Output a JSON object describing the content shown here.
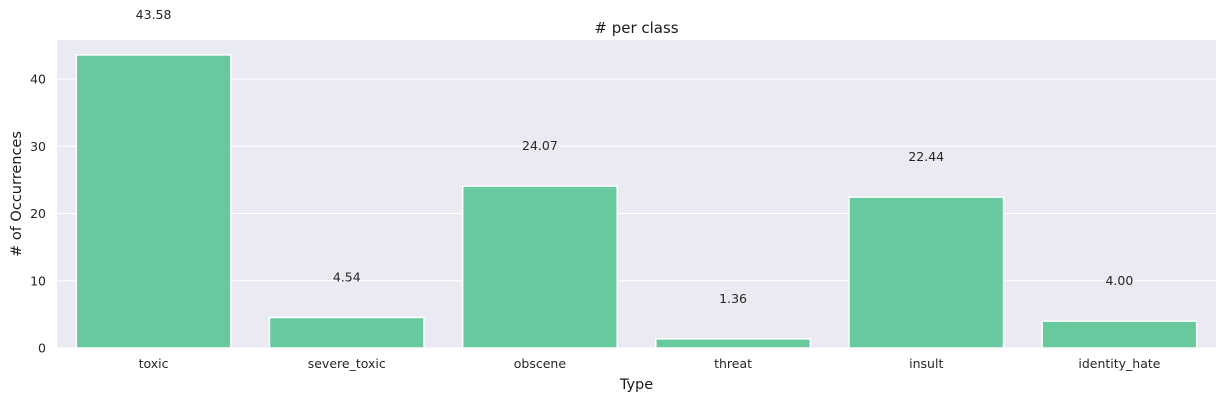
{
  "chart_data": {
    "type": "bar",
    "title": "# per class",
    "xlabel": "Type",
    "ylabel": "# of Occurrences",
    "categories": [
      "toxic",
      "severe_toxic",
      "obscene",
      "threat",
      "insult",
      "identity_hate"
    ],
    "values": [
      43.58,
      4.54,
      24.07,
      1.36,
      22.44,
      4.0
    ],
    "data_labels": [
      "43.58",
      "4.54",
      "24.07",
      "1.36",
      "22.44",
      "4.00"
    ],
    "ylim": [
      0,
      45.8
    ],
    "yticks": [
      0,
      10,
      20,
      30,
      40
    ],
    "grid": true,
    "legend": "none",
    "colors": {
      "bar": "#5ac596",
      "plot_background": "#eaeaf2",
      "grid": "#ffffff"
    }
  }
}
